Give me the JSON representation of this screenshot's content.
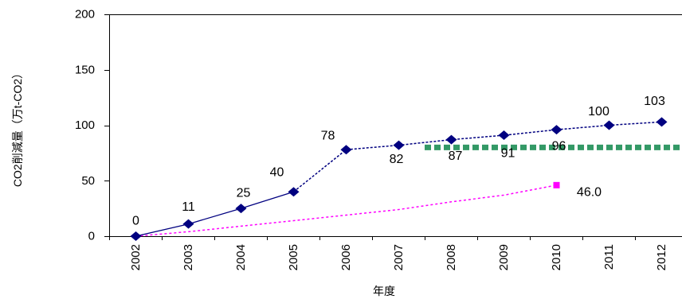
{
  "chart_data": {
    "type": "line",
    "categories": [
      "2002",
      "2003",
      "2004",
      "2005",
      "2006",
      "2007",
      "2008",
      "2009",
      "2010",
      "2011",
      "2012"
    ],
    "xlabel": "年度",
    "ylabel": "CO2削減量（万t-CO2）",
    "ylim": [
      0,
      200
    ],
    "yticks": [
      0,
      50,
      100,
      150,
      200
    ],
    "grid": false,
    "legend": "none",
    "series": [
      {
        "values": [
          0,
          11,
          25,
          40,
          78,
          82,
          87,
          91,
          96,
          100,
          103
        ],
        "labels": [
          "0",
          "11",
          "25",
          "40",
          "78",
          "82",
          "87",
          "91",
          "96",
          "100",
          "103"
        ],
        "color": "#000080",
        "marker": "diamond",
        "line": "solid",
        "dashed_from": "2005"
      },
      {
        "values": [
          0,
          4,
          9,
          14,
          19,
          24,
          31,
          37,
          46.0,
          null,
          null
        ],
        "labels": [
          null,
          null,
          null,
          null,
          null,
          null,
          null,
          null,
          "46.0",
          null,
          null
        ],
        "color": "#FF00FF",
        "marker": "square",
        "markers_at": [
          "2010"
        ],
        "line": "dashed"
      },
      {
        "values": [
          null,
          null,
          null,
          null,
          null,
          null,
          80,
          80,
          80,
          80,
          80
        ],
        "color": "#339966",
        "line": "dashed",
        "weight": "thick"
      }
    ]
  }
}
